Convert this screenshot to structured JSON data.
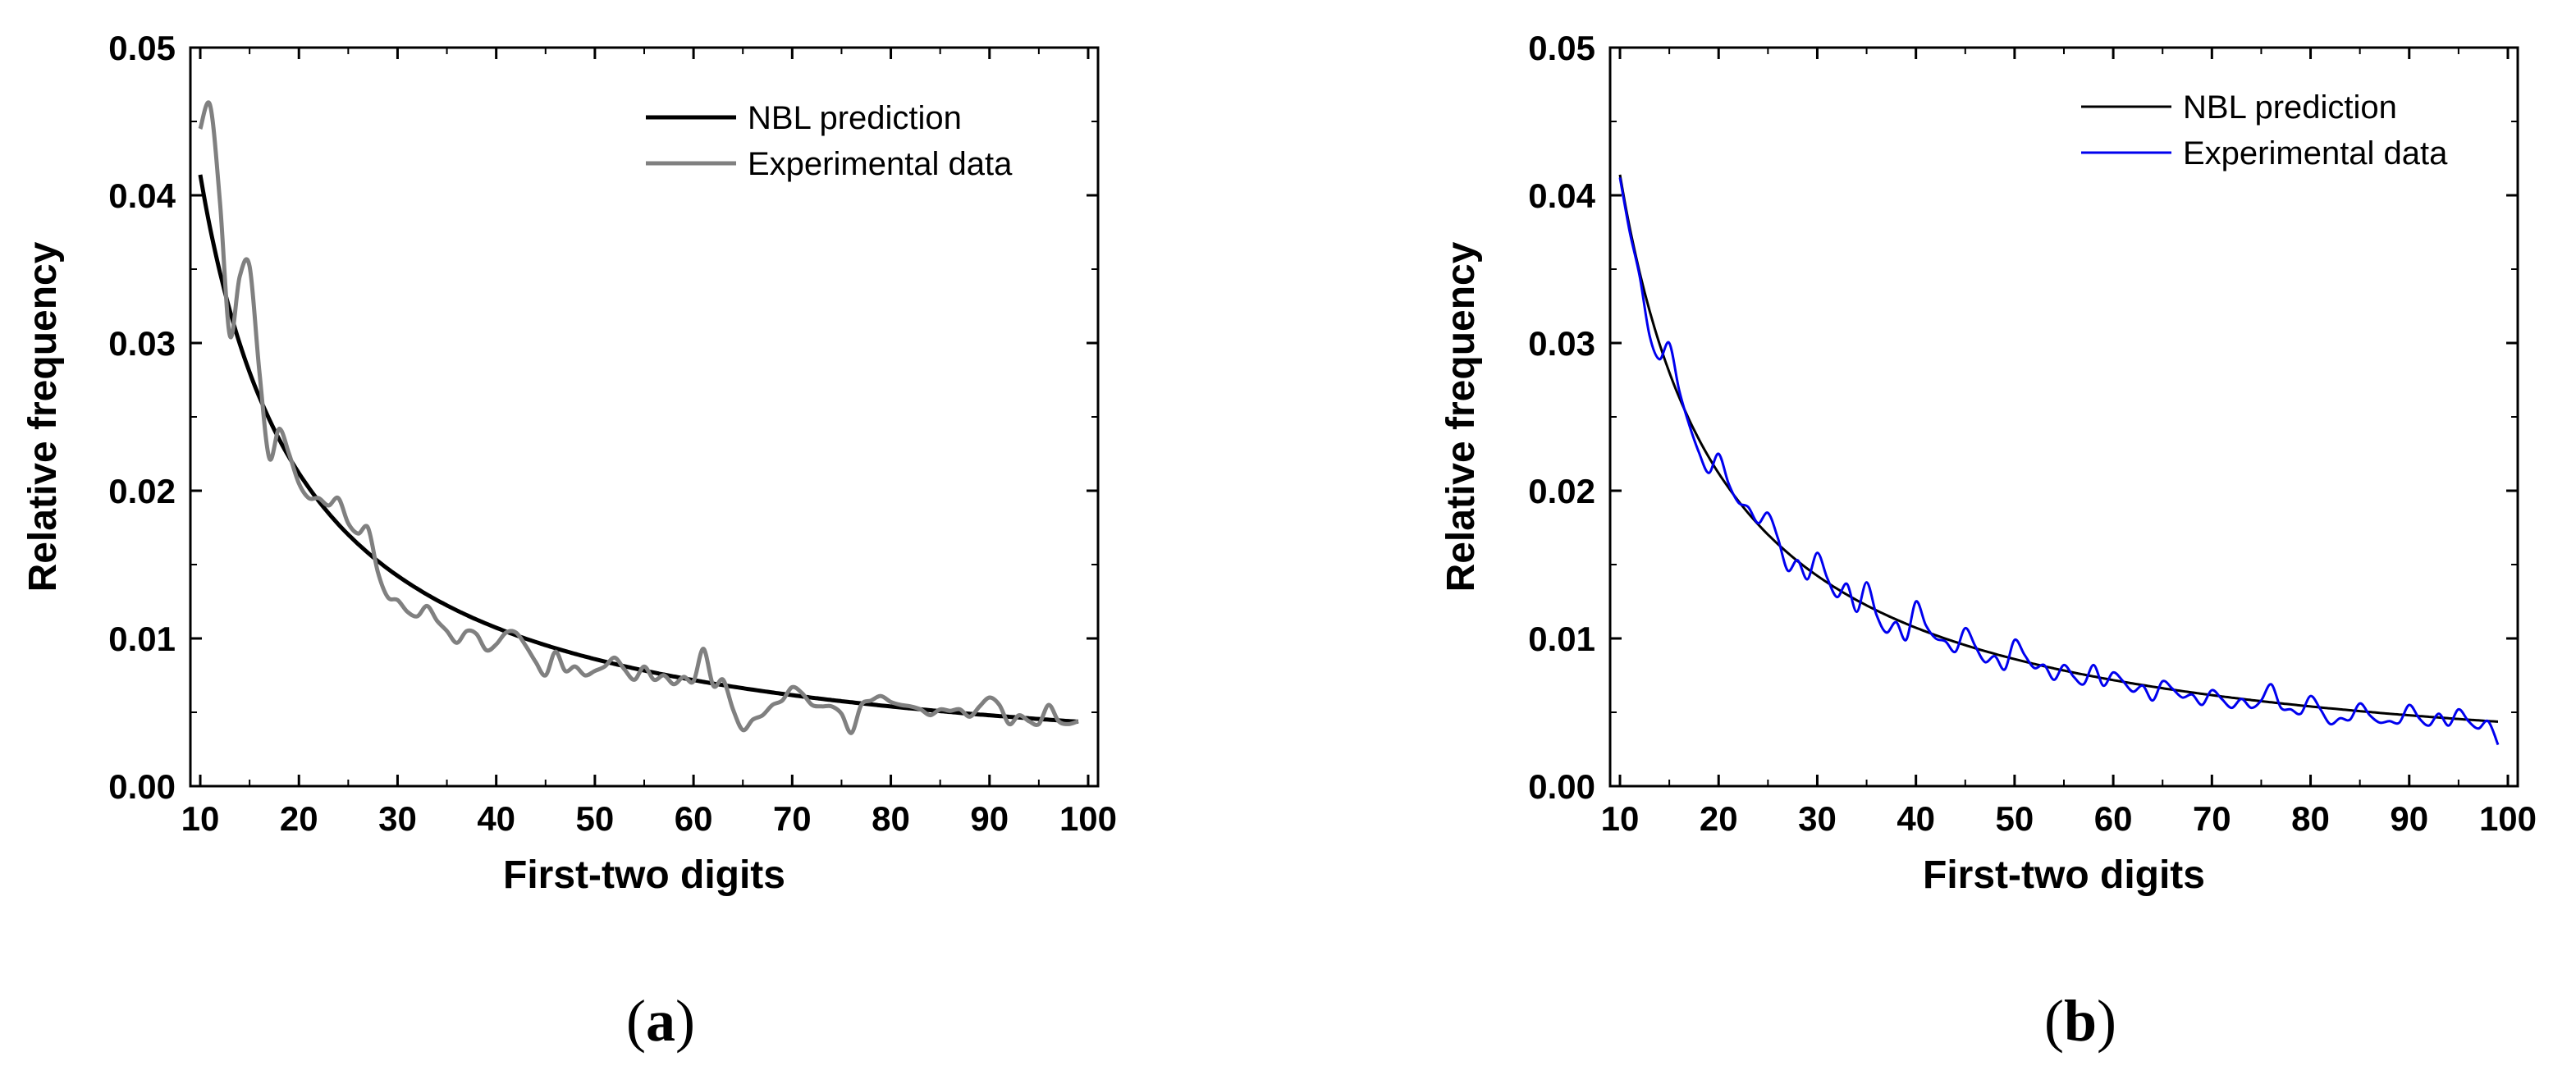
{
  "chart_data": [
    {
      "id": "a",
      "type": "line",
      "caption_open": "(",
      "caption_letter": "a",
      "caption_close": ")",
      "xlabel": "First-two digits",
      "ylabel": "Relative frequency",
      "xlim": [
        9,
        101
      ],
      "ylim": [
        0,
        0.05
      ],
      "xticks": [
        10,
        20,
        30,
        40,
        50,
        60,
        70,
        80,
        90,
        100
      ],
      "xtick_labels": [
        "10",
        "20",
        "30",
        "40",
        "50",
        "60",
        "70",
        "80",
        "90",
        "100"
      ],
      "yticks": [
        0,
        0.01,
        0.02,
        0.03,
        0.04,
        0.05
      ],
      "ytick_labels": [
        "0.00",
        "0.01",
        "0.02",
        "0.03",
        "0.04",
        "0.05"
      ],
      "legend_position": "top-right",
      "series": [
        {
          "name": "NBL prediction",
          "color": "#000000",
          "kind": "nbl",
          "x_range": [
            10,
            99
          ]
        },
        {
          "name": "Experimental data",
          "color": "#808080",
          "x": [
            10,
            11,
            12,
            13,
            14,
            15,
            16,
            17,
            18,
            19,
            20,
            21,
            22,
            23,
            24,
            25,
            26,
            27,
            28,
            29,
            30,
            31,
            32,
            33,
            34,
            35,
            36,
            37,
            38,
            39,
            40,
            41,
            42,
            43,
            44,
            45,
            46,
            47,
            48,
            49,
            50,
            51,
            52,
            53,
            54,
            55,
            56,
            57,
            58,
            59,
            60,
            61,
            62,
            63,
            64,
            65,
            66,
            67,
            68,
            69,
            70,
            71,
            72,
            73,
            74,
            75,
            76,
            77,
            78,
            79,
            80,
            81,
            82,
            83,
            84,
            85,
            86,
            87,
            88,
            89,
            90,
            91,
            92,
            93,
            94,
            95,
            96,
            97,
            98,
            99
          ],
          "y": [
            0.0445,
            0.0461,
            0.0395,
            0.0305,
            0.0345,
            0.0352,
            0.028,
            0.0222,
            0.0242,
            0.0225,
            0.0205,
            0.0195,
            0.0195,
            0.019,
            0.0195,
            0.0178,
            0.0171,
            0.0175,
            0.0145,
            0.0128,
            0.0126,
            0.0118,
            0.0115,
            0.0122,
            0.0112,
            0.0105,
            0.0097,
            0.0105,
            0.0103,
            0.0092,
            0.0096,
            0.0104,
            0.0104,
            0.0095,
            0.0084,
            0.0075,
            0.0091,
            0.0078,
            0.0081,
            0.0075,
            0.0078,
            0.0081,
            0.0087,
            0.0079,
            0.0072,
            0.0081,
            0.0072,
            0.0075,
            0.0069,
            0.0074,
            0.0071,
            0.0093,
            0.0068,
            0.0072,
            0.0052,
            0.0038,
            0.0045,
            0.0048,
            0.0055,
            0.0058,
            0.0067,
            0.0063,
            0.0055,
            0.0054,
            0.0054,
            0.0049,
            0.0036,
            0.0055,
            0.0058,
            0.0061,
            0.0057,
            0.0055,
            0.0054,
            0.0052,
            0.0048,
            0.0052,
            0.0051,
            0.0052,
            0.0047,
            0.0054,
            0.006,
            0.0055,
            0.0042,
            0.0048,
            0.0044,
            0.0042,
            0.0055,
            0.0044,
            0.0042,
            0.0044
          ]
        }
      ]
    },
    {
      "id": "b",
      "type": "line",
      "caption_open": "(",
      "caption_letter": "b",
      "caption_close": ")",
      "xlabel": "First-two digits",
      "ylabel": "Relative frequency",
      "xlim": [
        9,
        101
      ],
      "ylim": [
        0,
        0.05
      ],
      "xticks": [
        10,
        20,
        30,
        40,
        50,
        60,
        70,
        80,
        90,
        100
      ],
      "xtick_labels": [
        "10",
        "20",
        "30",
        "40",
        "50",
        "60",
        "70",
        "80",
        "90",
        "100"
      ],
      "yticks": [
        0,
        0.01,
        0.02,
        0.03,
        0.04,
        0.05
      ],
      "ytick_labels": [
        "0.00",
        "0.01",
        "0.02",
        "0.03",
        "0.04",
        "0.05"
      ],
      "legend_position": "top-right",
      "series": [
        {
          "name": "NBL prediction",
          "color": "#000000",
          "kind": "nbl",
          "x_range": [
            10,
            99
          ]
        },
        {
          "name": "Experimental data",
          "color": "#0000ee",
          "x": [
            10,
            11,
            12,
            13,
            14,
            15,
            16,
            17,
            18,
            19,
            20,
            21,
            22,
            23,
            24,
            25,
            26,
            27,
            28,
            29,
            30,
            31,
            32,
            33,
            34,
            35,
            36,
            37,
            38,
            39,
            40,
            41,
            42,
            43,
            44,
            45,
            46,
            47,
            48,
            49,
            50,
            51,
            52,
            53,
            54,
            55,
            56,
            57,
            58,
            59,
            60,
            61,
            62,
            63,
            64,
            65,
            66,
            67,
            68,
            69,
            70,
            71,
            72,
            73,
            74,
            75,
            76,
            77,
            78,
            79,
            80,
            81,
            82,
            83,
            84,
            85,
            86,
            87,
            88,
            89,
            90,
            91,
            92,
            93,
            94,
            95,
            96,
            97,
            98,
            99
          ],
          "y": [
            0.0412,
            0.0375,
            0.0345,
            0.0305,
            0.0289,
            0.03,
            0.0268,
            0.0245,
            0.0226,
            0.0212,
            0.0225,
            0.0205,
            0.0192,
            0.0189,
            0.0178,
            0.0185,
            0.0168,
            0.0146,
            0.0153,
            0.014,
            0.0158,
            0.0141,
            0.0128,
            0.0137,
            0.0118,
            0.0138,
            0.0116,
            0.0104,
            0.0111,
            0.0099,
            0.0125,
            0.0109,
            0.01,
            0.0098,
            0.0091,
            0.0107,
            0.0095,
            0.0084,
            0.0088,
            0.0079,
            0.0099,
            0.0089,
            0.008,
            0.0082,
            0.0072,
            0.0082,
            0.0074,
            0.0069,
            0.0082,
            0.0068,
            0.0077,
            0.0071,
            0.0064,
            0.0068,
            0.0058,
            0.0071,
            0.0066,
            0.006,
            0.0062,
            0.0055,
            0.0065,
            0.0059,
            0.0053,
            0.0059,
            0.0053,
            0.0058,
            0.0069,
            0.0053,
            0.0052,
            0.0049,
            0.0061,
            0.0052,
            0.0042,
            0.0046,
            0.0045,
            0.0056,
            0.0048,
            0.0043,
            0.0044,
            0.0043,
            0.0055,
            0.0046,
            0.0041,
            0.0049,
            0.0041,
            0.0052,
            0.0044,
            0.0039,
            0.0044,
            0.0028
          ]
        }
      ]
    }
  ]
}
